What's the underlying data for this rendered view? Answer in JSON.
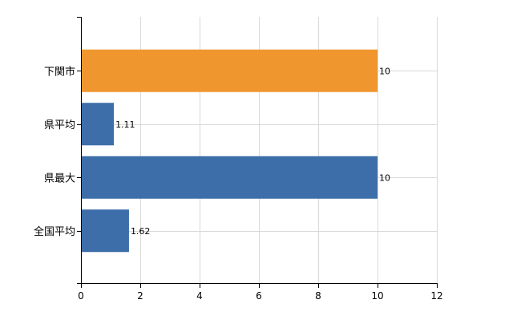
{
  "chart_data": {
    "type": "bar",
    "orientation": "horizontal",
    "categories": [
      "下関市",
      "県平均",
      "県最大",
      "全国平均"
    ],
    "values": [
      10,
      1.11,
      10,
      1.62
    ],
    "value_labels": [
      "10",
      "1.11",
      "10",
      "1.62"
    ],
    "bar_colors": [
      "#f0962e",
      "#3d6ea9",
      "#3d6ea9",
      "#3d6ea9"
    ],
    "xlim": [
      0,
      12
    ],
    "x_ticks": [
      0,
      2,
      4,
      6,
      8,
      10,
      12
    ],
    "x_tick_labels": [
      "0",
      "2",
      "4",
      "6",
      "8",
      "10",
      "12"
    ],
    "grid": true,
    "title": "",
    "xlabel": "",
    "ylabel": ""
  }
}
